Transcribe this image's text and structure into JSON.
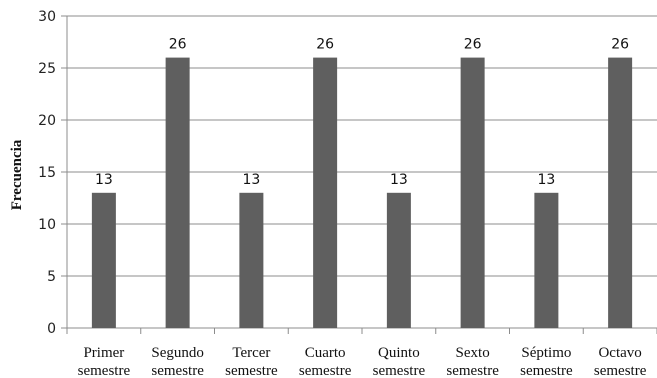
{
  "chart_data": {
    "type": "bar",
    "categories": [
      [
        "Primer",
        "semestre"
      ],
      [
        "Segundo",
        "semestre"
      ],
      [
        "Tercer",
        "semestre"
      ],
      [
        "Cuarto",
        "semestre"
      ],
      [
        "Quinto",
        "semestre"
      ],
      [
        "Sexto",
        "semestre"
      ],
      [
        "Séptimo",
        "semestre"
      ],
      [
        "Octavo",
        "semestre"
      ]
    ],
    "values": [
      13,
      26,
      13,
      26,
      13,
      26,
      13,
      26
    ],
    "data_labels": [
      "13",
      "26",
      "13",
      "26",
      "13",
      "26",
      "13",
      "26"
    ],
    "xlabel": "",
    "ylabel": "Frecuencia",
    "ylim": [
      0,
      30
    ],
    "yticks": [
      "0",
      "5",
      "10",
      "15",
      "20",
      "25",
      "30"
    ],
    "grid": true,
    "legend": "none",
    "colors": {
      "bar": "#5f5f5f",
      "grid": "#8c8c8c",
      "axis": "#8c8c8c"
    }
  }
}
